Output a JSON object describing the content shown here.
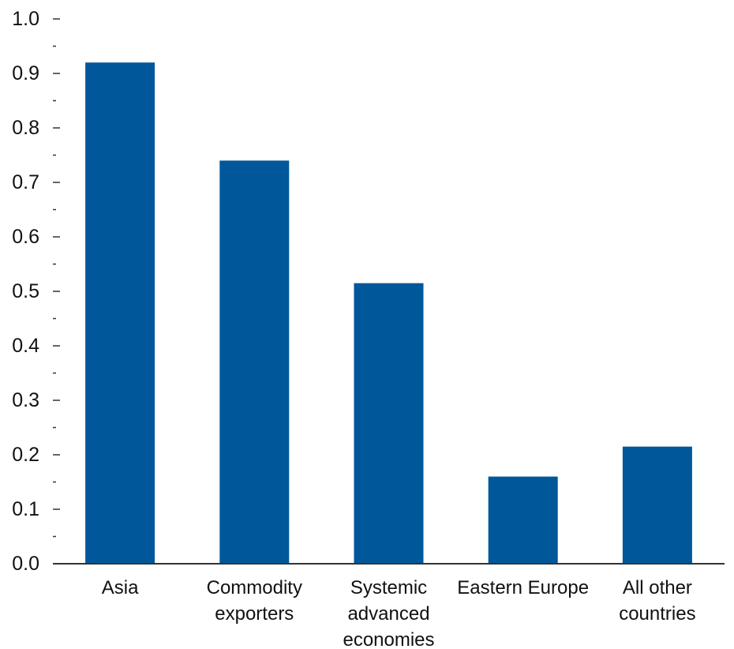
{
  "chart_data": {
    "type": "bar",
    "categories": [
      [
        "Asia"
      ],
      [
        "Commodity",
        "exporters"
      ],
      [
        "Systemic",
        "advanced",
        "economies"
      ],
      [
        "Eastern Europe"
      ],
      [
        "All other",
        "countries"
      ]
    ],
    "values": [
      0.92,
      0.74,
      0.515,
      0.16,
      0.215
    ],
    "ylim": [
      0.0,
      1.0
    ],
    "yticks": [
      "0.0",
      "0.1",
      "0.2",
      "0.3",
      "0.4",
      "0.5",
      "0.6",
      "0.7",
      "0.8",
      "0.9",
      "1.0"
    ],
    "title": "",
    "xlabel": "",
    "ylabel": "",
    "grid": false,
    "bar_color": "#00579A"
  }
}
